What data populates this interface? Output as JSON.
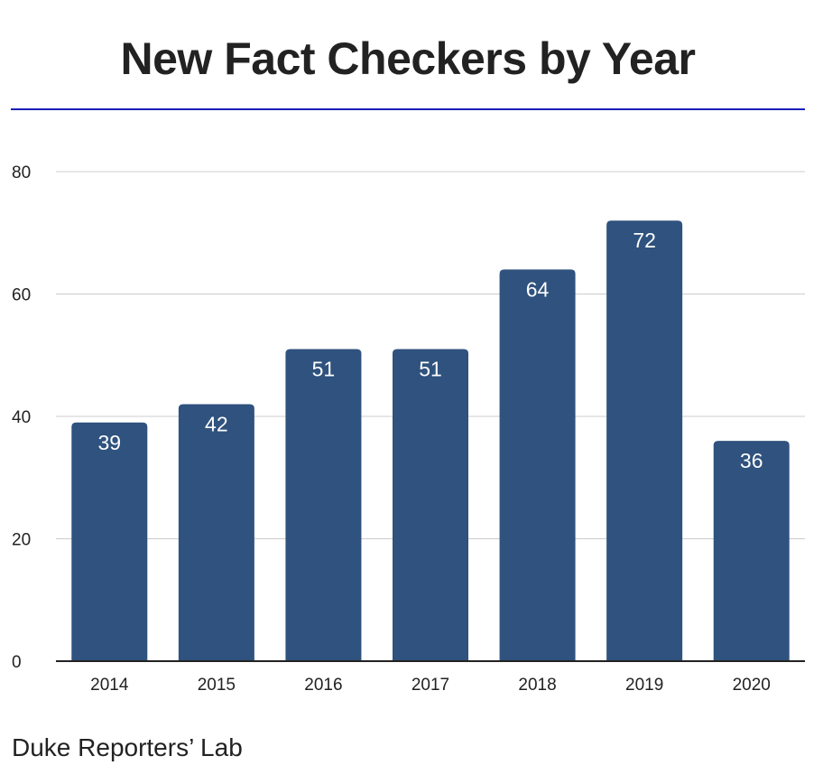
{
  "chart_data": {
    "type": "bar",
    "title": "New Fact Checkers by Year",
    "xlabel": "",
    "ylabel": "",
    "categories": [
      "2014",
      "2015",
      "2016",
      "2017",
      "2018",
      "2019",
      "2020"
    ],
    "values": [
      39,
      42,
      51,
      51,
      64,
      72,
      36
    ],
    "data_labels": [
      "39",
      "42",
      "51",
      "51",
      "64",
      "72",
      "36"
    ],
    "ylim": [
      0,
      80
    ],
    "yticks": [
      0,
      20,
      40,
      60,
      80
    ],
    "ytick_labels": [
      "0",
      "20",
      "40",
      "60",
      "80"
    ],
    "grid": true,
    "legend": "none",
    "colors": {
      "bar": "#2f527e",
      "title_rule": "#1a1fb8",
      "grid": "#cccccc",
      "axis": "#222222"
    }
  },
  "footer": {
    "source": "Duke Reporters’ Lab"
  }
}
